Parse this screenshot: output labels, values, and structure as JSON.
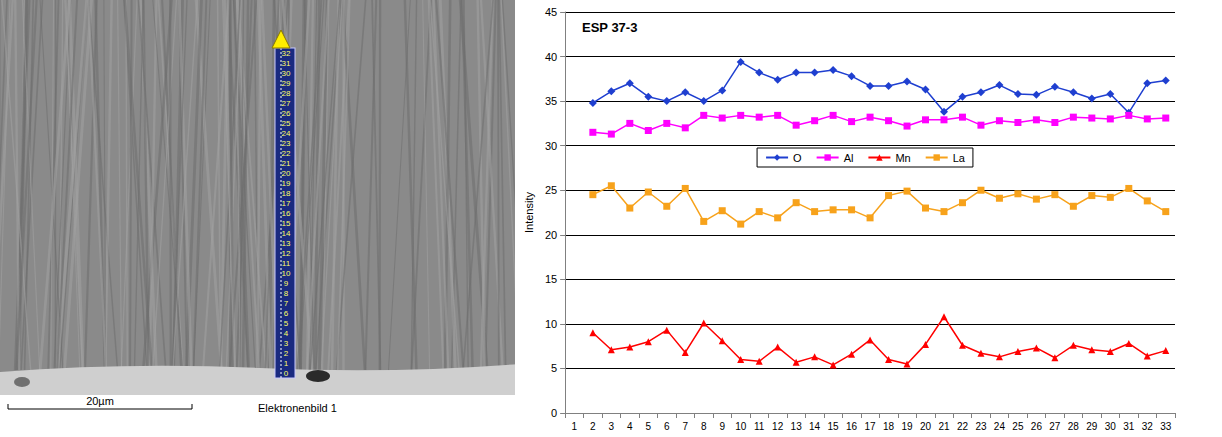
{
  "micrograph": {
    "scale_bar": "20µm",
    "caption": "Elektronenbild 1",
    "scan_points": [
      "0",
      "1",
      "2",
      "3",
      "4",
      "5",
      "6",
      "7",
      "8",
      "9",
      "10",
      "11",
      "12",
      "13",
      "14",
      "15",
      "16",
      "17",
      "18",
      "19",
      "20",
      "21",
      "22",
      "23",
      "24",
      "25",
      "26",
      "27",
      "28",
      "29",
      "30",
      "31",
      "32"
    ]
  },
  "chart_data": {
    "type": "line",
    "title": "ESP 37-3",
    "y_label": "Intensity",
    "categories": [
      "1",
      "2",
      "3",
      "4",
      "5",
      "6",
      "7",
      "8",
      "9",
      "10",
      "11",
      "12",
      "13",
      "14",
      "15",
      "16",
      "17",
      "18",
      "19",
      "20",
      "21",
      "22",
      "23",
      "24",
      "25",
      "26",
      "27",
      "28",
      "29",
      "30",
      "31",
      "32",
      "33"
    ],
    "series": [
      {
        "name": "O",
        "color": "#1f3fd0",
        "marker": "diamond",
        "values": [
          null,
          34.8,
          36.1,
          37.0,
          35.5,
          35.0,
          36.0,
          35.0,
          36.2,
          39.4,
          38.2,
          37.4,
          38.2,
          38.2,
          38.5,
          37.8,
          36.7,
          36.7,
          37.2,
          36.3,
          33.8,
          35.5,
          36.0,
          36.8,
          35.8,
          35.7,
          36.6,
          36.0,
          35.3,
          35.8,
          33.7,
          37.0,
          37.3
        ]
      },
      {
        "name": "Al",
        "color": "#ff00ff",
        "marker": "square",
        "values": [
          null,
          31.5,
          31.3,
          32.5,
          31.7,
          32.5,
          32.0,
          33.4,
          33.1,
          33.4,
          33.2,
          33.4,
          32.3,
          32.8,
          33.4,
          32.7,
          33.2,
          32.8,
          32.2,
          32.9,
          32.9,
          33.2,
          32.3,
          32.8,
          32.6,
          32.9,
          32.6,
          33.2,
          33.1,
          33.0,
          33.4,
          33.0,
          33.1
        ]
      },
      {
        "name": "Mn",
        "color": "#ff0000",
        "marker": "triangle",
        "values": [
          null,
          9.0,
          7.1,
          7.4,
          8.0,
          9.3,
          6.8,
          10.1,
          8.1,
          6.0,
          5.8,
          7.4,
          5.7,
          6.3,
          5.4,
          6.6,
          8.2,
          6.0,
          5.5,
          7.7,
          10.8,
          7.6,
          6.7,
          6.3,
          6.9,
          7.3,
          6.2,
          7.6,
          7.1,
          6.9,
          7.8,
          6.4,
          7.0
        ]
      },
      {
        "name": "La",
        "color": "#f7a21b",
        "marker": "square",
        "values": [
          null,
          24.5,
          25.5,
          23.0,
          24.8,
          23.2,
          25.2,
          21.5,
          22.7,
          21.2,
          22.6,
          21.9,
          23.6,
          22.6,
          22.8,
          22.8,
          21.9,
          24.4,
          24.9,
          23.0,
          22.6,
          23.6,
          25.0,
          24.1,
          24.6,
          24.0,
          24.5,
          23.2,
          24.4,
          24.2,
          25.2,
          23.8,
          22.6
        ]
      }
    ],
    "ylim": [
      0,
      45
    ],
    "yticks": [
      0,
      5,
      10,
      15,
      20,
      25,
      30,
      35,
      40,
      45
    ],
    "grid": true,
    "legend": "center"
  }
}
